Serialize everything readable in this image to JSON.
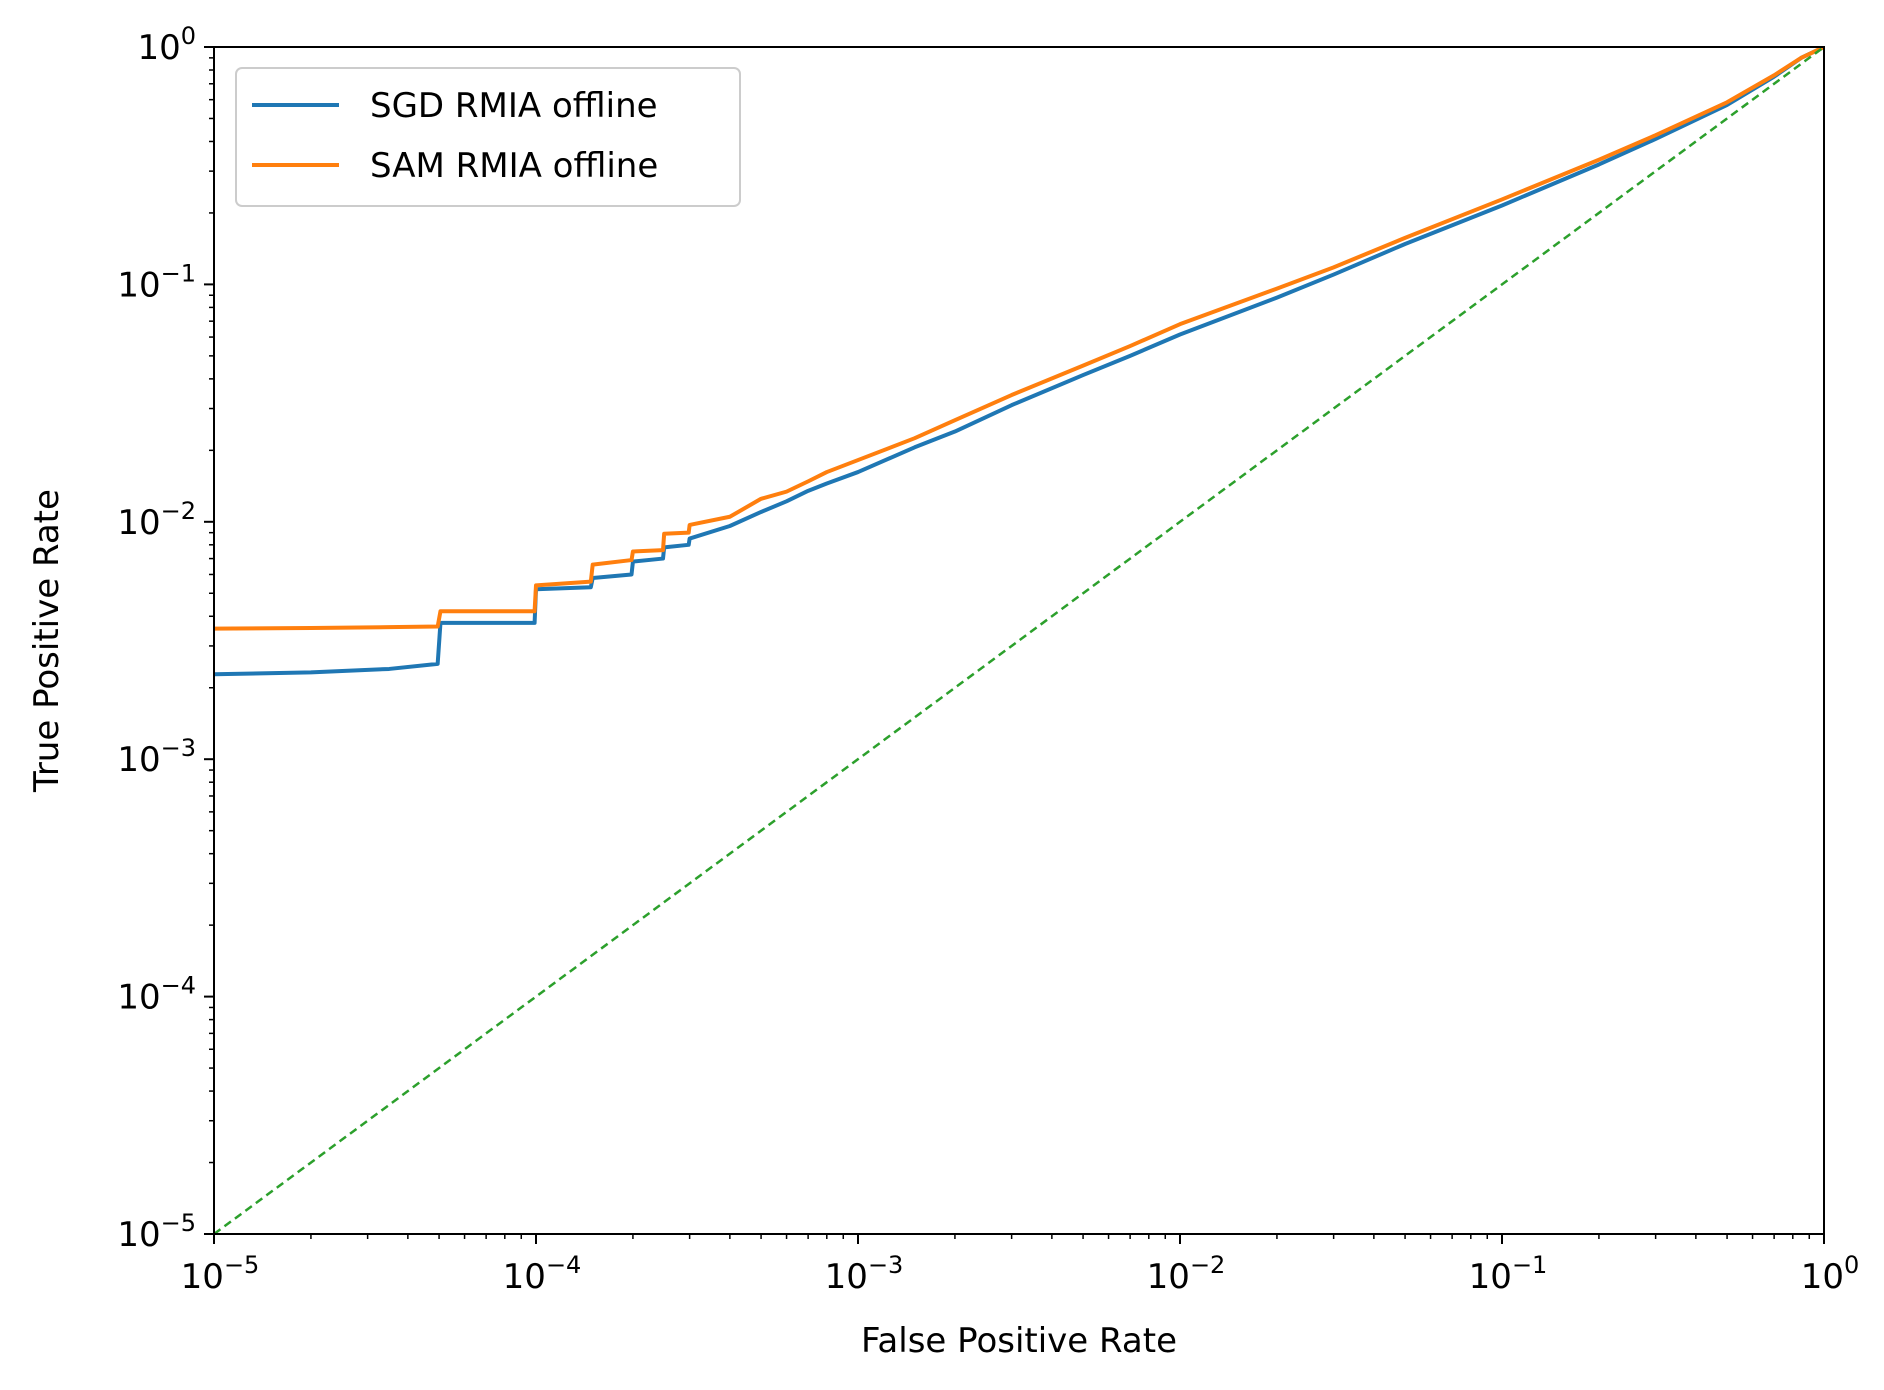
{
  "chart_data": {
    "type": "line",
    "title": "",
    "xlabel": "False Positive Rate",
    "ylabel": "True Positive Rate",
    "xscale": "log",
    "yscale": "log",
    "xlim": [
      1e-05,
      1
    ],
    "ylim": [
      1e-05,
      1
    ],
    "grid": false,
    "legend_position": "top-left",
    "x_ticks": [
      {
        "base": "10",
        "exp": "−5",
        "value": 1e-05
      },
      {
        "base": "10",
        "exp": "−4",
        "value": 0.0001
      },
      {
        "base": "10",
        "exp": "−3",
        "value": 0.001
      },
      {
        "base": "10",
        "exp": "−2",
        "value": 0.01
      },
      {
        "base": "10",
        "exp": "−1",
        "value": 0.1
      },
      {
        "base": "10",
        "exp": "0",
        "value": 1
      }
    ],
    "y_ticks": [
      {
        "base": "10",
        "exp": "−5",
        "value": 1e-05
      },
      {
        "base": "10",
        "exp": "−4",
        "value": 0.0001
      },
      {
        "base": "10",
        "exp": "−3",
        "value": 0.001
      },
      {
        "base": "10",
        "exp": "−2",
        "value": 0.01
      },
      {
        "base": "10",
        "exp": "−1",
        "value": 0.1
      },
      {
        "base": "10",
        "exp": "0",
        "value": 1
      }
    ],
    "series": [
      {
        "name": "SGD RMIA offline",
        "color": "#1f77b4",
        "style": "solid",
        "points": [
          [
            1e-05,
            0.00228
          ],
          [
            2e-05,
            0.00232
          ],
          [
            3.5e-05,
            0.0024
          ],
          [
            4.95e-05,
            0.00252
          ],
          [
            5.05e-05,
            0.00375
          ],
          [
            9.9e-05,
            0.00375
          ],
          [
            0.0001,
            0.0052
          ],
          [
            0.000148,
            0.0053
          ],
          [
            0.00015,
            0.0058
          ],
          [
            0.000198,
            0.006
          ],
          [
            0.0002,
            0.0068
          ],
          [
            0.000248,
            0.007
          ],
          [
            0.00025,
            0.0078
          ],
          [
            0.000298,
            0.008
          ],
          [
            0.0003,
            0.0085
          ],
          [
            0.0004,
            0.0096
          ],
          [
            0.0005,
            0.011
          ],
          [
            0.0006,
            0.0122
          ],
          [
            0.0007,
            0.0135
          ],
          [
            0.0008,
            0.0145
          ],
          [
            0.001,
            0.0162
          ],
          [
            0.0015,
            0.0206
          ],
          [
            0.002,
            0.024
          ],
          [
            0.003,
            0.031
          ],
          [
            0.005,
            0.0415
          ],
          [
            0.007,
            0.05
          ],
          [
            0.01,
            0.0615
          ],
          [
            0.02,
            0.088
          ],
          [
            0.03,
            0.11
          ],
          [
            0.05,
            0.148
          ],
          [
            0.1,
            0.215
          ],
          [
            0.2,
            0.32
          ],
          [
            0.3,
            0.41
          ],
          [
            0.5,
            0.57
          ],
          [
            0.7,
            0.75
          ],
          [
            0.85,
            0.9
          ],
          [
            1,
            1
          ]
        ]
      },
      {
        "name": "SAM RMIA offline",
        "color": "#ff7f0e",
        "style": "solid",
        "points": [
          [
            1e-05,
            0.00355
          ],
          [
            2e-05,
            0.00357
          ],
          [
            3.5e-05,
            0.0036
          ],
          [
            4.95e-05,
            0.00362
          ],
          [
            5.05e-05,
            0.0042
          ],
          [
            9.9e-05,
            0.0042
          ],
          [
            0.0001,
            0.0054
          ],
          [
            0.000148,
            0.0056
          ],
          [
            0.00015,
            0.0066
          ],
          [
            0.000198,
            0.0069
          ],
          [
            0.0002,
            0.0075
          ],
          [
            0.000248,
            0.0076
          ],
          [
            0.00025,
            0.0089
          ],
          [
            0.000298,
            0.009
          ],
          [
            0.0003,
            0.0097
          ],
          [
            0.0004,
            0.0105
          ],
          [
            0.0005,
            0.0125
          ],
          [
            0.0006,
            0.0134
          ],
          [
            0.0007,
            0.0148
          ],
          [
            0.0008,
            0.0162
          ],
          [
            0.001,
            0.0182
          ],
          [
            0.0015,
            0.0225
          ],
          [
            0.002,
            0.0268
          ],
          [
            0.003,
            0.0342
          ],
          [
            0.005,
            0.0455
          ],
          [
            0.007,
            0.055
          ],
          [
            0.01,
            0.068
          ],
          [
            0.02,
            0.096
          ],
          [
            0.03,
            0.118
          ],
          [
            0.05,
            0.157
          ],
          [
            0.1,
            0.228
          ],
          [
            0.2,
            0.335
          ],
          [
            0.3,
            0.425
          ],
          [
            0.5,
            0.585
          ],
          [
            0.7,
            0.76
          ],
          [
            0.85,
            0.9
          ],
          [
            1,
            1
          ]
        ]
      },
      {
        "color": "#2ca02c",
        "style": "dashed",
        "points": [
          [
            1e-05,
            1e-05
          ],
          [
            1,
            1
          ]
        ]
      }
    ]
  }
}
